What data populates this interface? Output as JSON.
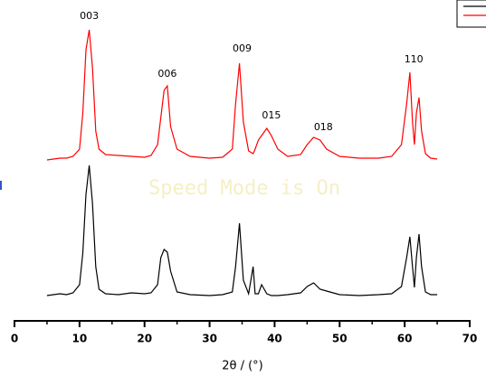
{
  "chart_data": {
    "type": "line",
    "xlabel": "2θ / (°)",
    "watermark": "Speed Mode is On",
    "xlim": [
      0,
      70
    ],
    "xticks": [
      0,
      10,
      20,
      30,
      40,
      50,
      60,
      70
    ],
    "xminorticks": [
      5,
      15,
      25,
      35,
      45,
      55,
      65
    ],
    "ylim": [
      0,
      330
    ],
    "legend": "upper right",
    "x": [
      5,
      6,
      7,
      8,
      9,
      10,
      10.5,
      11,
      11.5,
      12,
      12.5,
      13,
      14,
      16,
      18,
      20,
      21,
      22,
      22.5,
      23,
      23.5,
      24,
      25,
      27,
      30,
      32,
      33.5,
      34,
      34.6,
      35.2,
      36,
      36.7,
      37,
      37.5,
      38,
      38.8,
      39.5,
      40.5,
      42,
      44,
      45,
      46,
      47,
      48,
      50,
      53,
      56,
      58,
      59.5,
      60.3,
      60.8,
      61.2,
      61.5,
      61.8,
      62.2,
      62.6,
      63.2,
      64,
      65
    ],
    "series": [
      {
        "color": "#000000",
        "values": [
          28,
          29,
          30,
          29,
          31,
          40,
          75,
          140,
          172,
          130,
          60,
          35,
          30,
          29,
          31,
          30,
          31,
          40,
          70,
          79,
          76,
          55,
          32,
          29,
          28,
          29,
          32,
          60,
          108,
          45,
          30,
          60,
          30,
          30,
          40,
          30,
          28,
          28,
          29,
          31,
          38,
          42,
          35,
          33,
          29,
          28,
          29,
          30,
          38,
          70,
          93,
          60,
          37,
          70,
          96,
          60,
          32,
          29,
          29
        ]
      },
      {
        "color": "#ff0000",
        "values": [
          178,
          179,
          180,
          180,
          182,
          190,
          230,
          300,
          322,
          280,
          210,
          190,
          184,
          183,
          182,
          181,
          183,
          195,
          225,
          255,
          260,
          215,
          190,
          182,
          180,
          181,
          190,
          240,
          285,
          220,
          188,
          185,
          190,
          200,
          205,
          213,
          205,
          190,
          182,
          184,
          195,
          203,
          200,
          190,
          182,
          180,
          180,
          182,
          195,
          240,
          275,
          220,
          195,
          230,
          247,
          210,
          185,
          180,
          179
        ]
      }
    ],
    "annotations": [
      {
        "text": "003",
        "x": 11.5,
        "y": 337
      },
      {
        "text": "006",
        "x": 23.5,
        "y": 273
      },
      {
        "text": "009",
        "x": 35,
        "y": 301
      },
      {
        "text": "015",
        "x": 39.5,
        "y": 227
      },
      {
        "text": "018",
        "x": 47.5,
        "y": 214
      },
      {
        "text": "110",
        "x": 61.4,
        "y": 289
      }
    ]
  }
}
